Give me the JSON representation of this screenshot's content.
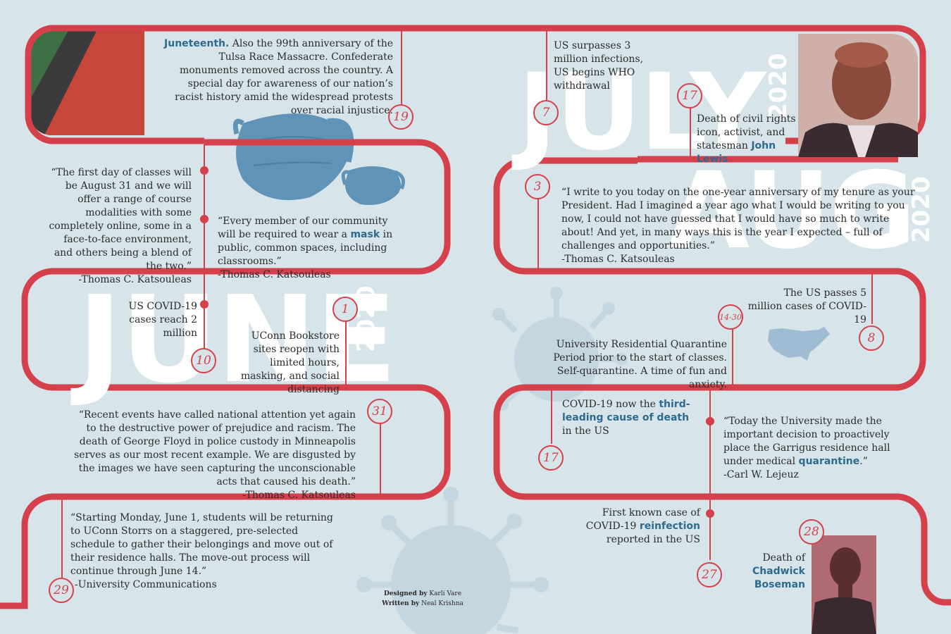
{
  "colors": {
    "path": "#d5414a",
    "bg": "#d7e4ea",
    "accent": "#2f6a8f",
    "mask": "#5f93b8",
    "virus": "#c4d6e0"
  },
  "months": {
    "june": "JUNE",
    "june_year": "2020",
    "july": "JULY",
    "july_year": "2020",
    "aug": "AUG",
    "aug_year": "2020"
  },
  "dates": {
    "d19": "19",
    "d1": "1",
    "d10": "10",
    "d31": "31",
    "d29": "29",
    "d7": "7",
    "d17a": "17",
    "d3": "3",
    "d8": "8",
    "d14_30": "14-30",
    "d17b": "17",
    "d27": "27",
    "d28": "28"
  },
  "events": {
    "juneteenth": {
      "bold": "Juneteenth.",
      "rest": " Also the 99th anniversary of the Tulsa Race Massacre. Confederate monuments removed across the country. A special day for awareness of our nation’s racist history amid the widespread protests over racial injustice."
    },
    "classes_quote": "“The first day of classes will be August 31 and we will offer a range of course modalities with some completely online, some in a face-to-face environment, and others being a blend of the two.”",
    "classes_attr": "-Thomas C. Katsouleas",
    "mask_pre": "“Every member of our community will be required to wear a ",
    "mask_hl": "mask",
    "mask_post": " in public, common spaces, including classrooms.”",
    "mask_attr": "-Thomas C. Katsouleas",
    "covid2m": "US COVID-19 cases reach 2 million",
    "bookstore": "UConn Bookstore sites reopen with limited hours, masking, and social distancing",
    "floyd_quote": "“Recent events have called national attention yet again to the destructive power of prejudice and racism. The death of George Floyd in police custody in Minneapolis serves as our most recent example. We are disgusted by the images we have seen capturing the unconscionable acts that caused his death.”",
    "floyd_attr": "-Thomas C. Katsouleas",
    "moveout_quote": "“Starting Monday,  June 1, students will be returning to UConn Storrs on a staggered, pre-selected schedule to gather their belongings and move out of their residence halls. The move-out process will continue through June 14.”",
    "moveout_attr": "-University Communications",
    "us3m": "US surpasses 3 million infections, US begins WHO withdrawal",
    "lewis_pre": "Death of civil rights icon, activist, and statesman ",
    "lewis_hl": "John Lewis",
    "anniv_quote": "“I write to you today on the one-year anniversary of my tenure as your President. Had I imagined a year ago what I would be writing to you now, I could not have guessed that I would have so much to write about! And yet, in many ways this is the year I expected – full of challenges and opportunities.”",
    "anniv_attr": "-Thomas C. Katsouleas",
    "us5m": "The US passes 5 million cases of COVID-19",
    "quarantine": "University Residential Quarantine Period prior to the start of classes. Self-quarantine. A time of fun and anxiety.",
    "third_pre": "COVID-19 now the ",
    "third_hl": "third-leading cause of death",
    "third_post": " in the US",
    "garrigus_pre": "“Today the University made the important decision to proactively place the Garrigus residence hall under medical ",
    "garrigus_hl": "quarantine",
    "garrigus_post": ".”",
    "garrigus_attr": "-Carl W. Lejeuz",
    "reinf_pre": "First known case of COVID-19 ",
    "reinf_hl": "reinfection",
    "reinf_post": " reported in the US",
    "boseman_pre": "Death of",
    "boseman_hl": "Chadwick Boseman"
  },
  "credits": {
    "designed_label": "Designed by",
    "designed_name": " Karli Vare",
    "written_label": "Written by",
    "written_name": " Neal Krishna"
  }
}
